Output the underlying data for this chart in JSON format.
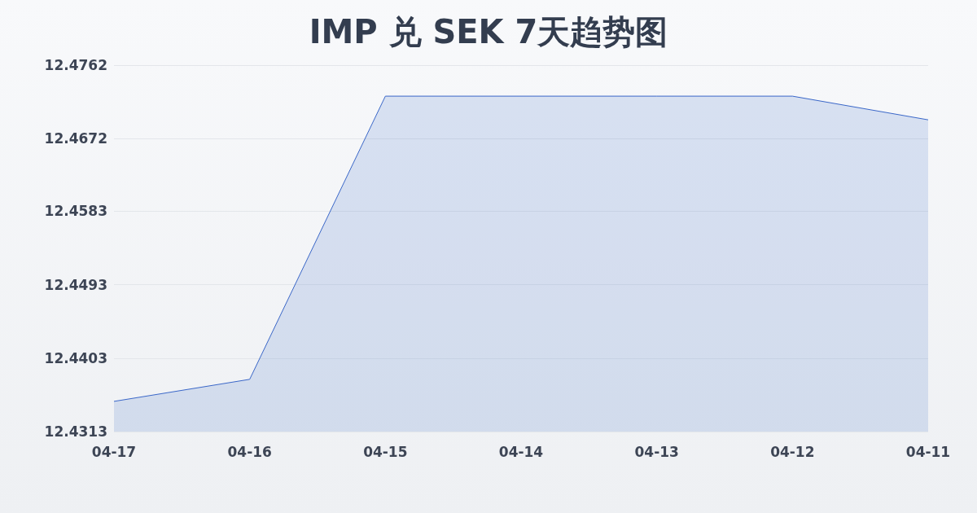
{
  "chart_data": {
    "type": "area",
    "title": "IMP 兑 SEK 7天趋势图",
    "categories": [
      "04-17",
      "04-16",
      "04-15",
      "04-14",
      "04-13",
      "04-12",
      "04-11"
    ],
    "series": [
      {
        "color": "#3a67c8",
        "values": [
          12.435,
          12.4377,
          12.4724,
          12.4724,
          12.4724,
          12.4724,
          12.4695
        ]
      }
    ],
    "ylim": [
      12.4313,
      12.4762
    ],
    "yticks": [
      12.4313,
      12.4403,
      12.4493,
      12.4583,
      12.4672,
      12.4762
    ],
    "grid": "y",
    "marker": "none",
    "line_style": "solid"
  }
}
